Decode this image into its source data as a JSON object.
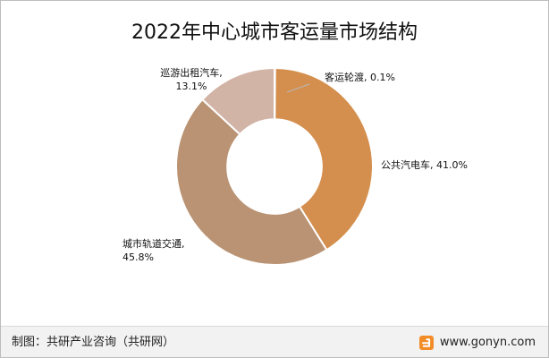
{
  "chart_data": {
    "type": "pie",
    "title": "2022年中心城市客运量市场结构",
    "categories": [
      "客运轮渡",
      "公共汽电车",
      "城市轨道交通",
      "巡游出租汽车"
    ],
    "values": [
      0.1,
      41.0,
      45.8,
      13.1
    ],
    "labels": [
      {
        "lines": [
          "客运轮渡, 0.1%"
        ]
      },
      {
        "lines": [
          "公共汽电车, 41.0%"
        ]
      },
      {
        "lines": [
          "城市轨道交通,",
          "45.8%"
        ]
      },
      {
        "lines": [
          "巡游出租汽车,",
          "13.1%"
        ]
      }
    ],
    "colors": [
      "#d2cfca",
      "#d48f4e",
      "#b99373",
      "#d2b4a7"
    ],
    "inner_radius_ratio": 0.48
  },
  "footer": {
    "source": "制图：共研产业咨询（共研网）",
    "website": "www.gonyn.com"
  },
  "brand": {
    "icon": "gonyn-logo-icon",
    "accent": "#f28c28"
  }
}
